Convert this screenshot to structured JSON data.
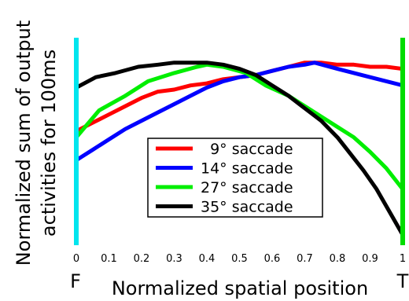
{
  "chart_data": {
    "type": "line",
    "title": "",
    "xlabel": "Normalized spatial position",
    "ylabel": [
      "Normalized sum of output",
      "activities for 100ms"
    ],
    "xlim": [
      0,
      1
    ],
    "ylim": [
      0,
      1
    ],
    "x_ticks": [
      0,
      0.1,
      0.2,
      0.3,
      0.4,
      0.5,
      0.6,
      0.7,
      0.8,
      0.9,
      1
    ],
    "x_tick_labels": [
      "0",
      "0.1",
      "0.2",
      "0.3",
      "0.4",
      "0.5",
      "0.6",
      "0.7",
      "0.8",
      "0.9",
      "1"
    ],
    "x_end_labels": {
      "left": "F",
      "right": "T"
    },
    "end_markers": {
      "left_color": "#00e5ee",
      "right_color": "#00dd00"
    },
    "grid": false,
    "legend_position": "lower-right",
    "series": [
      {
        "name": "9° saccade",
        "legend_label": "  9° saccade",
        "color": "#ff0000",
        "x": [
          0,
          0.05,
          0.1,
          0.15,
          0.2,
          0.25,
          0.3,
          0.35,
          0.4,
          0.45,
          0.5,
          0.55,
          0.6,
          0.65,
          0.7,
          0.75,
          0.8,
          0.85,
          0.9,
          0.95,
          1
        ],
        "y": [
          0.55,
          0.59,
          0.63,
          0.67,
          0.71,
          0.74,
          0.75,
          0.77,
          0.78,
          0.8,
          0.81,
          0.82,
          0.84,
          0.86,
          0.88,
          0.88,
          0.87,
          0.87,
          0.86,
          0.86,
          0.85
        ]
      },
      {
        "name": "14° saccade",
        "legend_label": "14° saccade",
        "color": "#0000ff",
        "x": [
          0,
          0.05,
          0.1,
          0.15,
          0.2,
          0.25,
          0.3,
          0.35,
          0.4,
          0.45,
          0.5,
          0.55,
          0.6,
          0.65,
          0.7,
          0.73,
          0.8,
          0.9,
          1
        ],
        "y": [
          0.41,
          0.46,
          0.51,
          0.56,
          0.6,
          0.64,
          0.68,
          0.72,
          0.76,
          0.79,
          0.81,
          0.82,
          0.84,
          0.86,
          0.87,
          0.88,
          0.85,
          0.81,
          0.77
        ]
      },
      {
        "name": "27° saccade",
        "legend_label": "27° saccade",
        "color": "#00ee00",
        "x": [
          0,
          0.07,
          0.15,
          0.22,
          0.3,
          0.37,
          0.4,
          0.45,
          0.52,
          0.58,
          0.65,
          0.72,
          0.8,
          0.85,
          0.9,
          0.95,
          1
        ],
        "y": [
          0.52,
          0.65,
          0.72,
          0.79,
          0.83,
          0.86,
          0.87,
          0.86,
          0.83,
          0.77,
          0.72,
          0.65,
          0.57,
          0.52,
          0.45,
          0.37,
          0.27
        ]
      },
      {
        "name": "35° saccade",
        "legend_label": "35° saccade",
        "color": "#000000",
        "x": [
          0,
          0.06,
          0.12,
          0.19,
          0.25,
          0.3,
          0.35,
          0.4,
          0.45,
          0.5,
          0.55,
          0.6,
          0.65,
          0.7,
          0.75,
          0.8,
          0.84,
          0.88,
          0.92,
          0.96,
          1
        ],
        "y": [
          0.76,
          0.81,
          0.83,
          0.86,
          0.87,
          0.88,
          0.88,
          0.88,
          0.87,
          0.85,
          0.82,
          0.77,
          0.72,
          0.66,
          0.6,
          0.52,
          0.44,
          0.36,
          0.27,
          0.16,
          0.05
        ]
      }
    ]
  }
}
